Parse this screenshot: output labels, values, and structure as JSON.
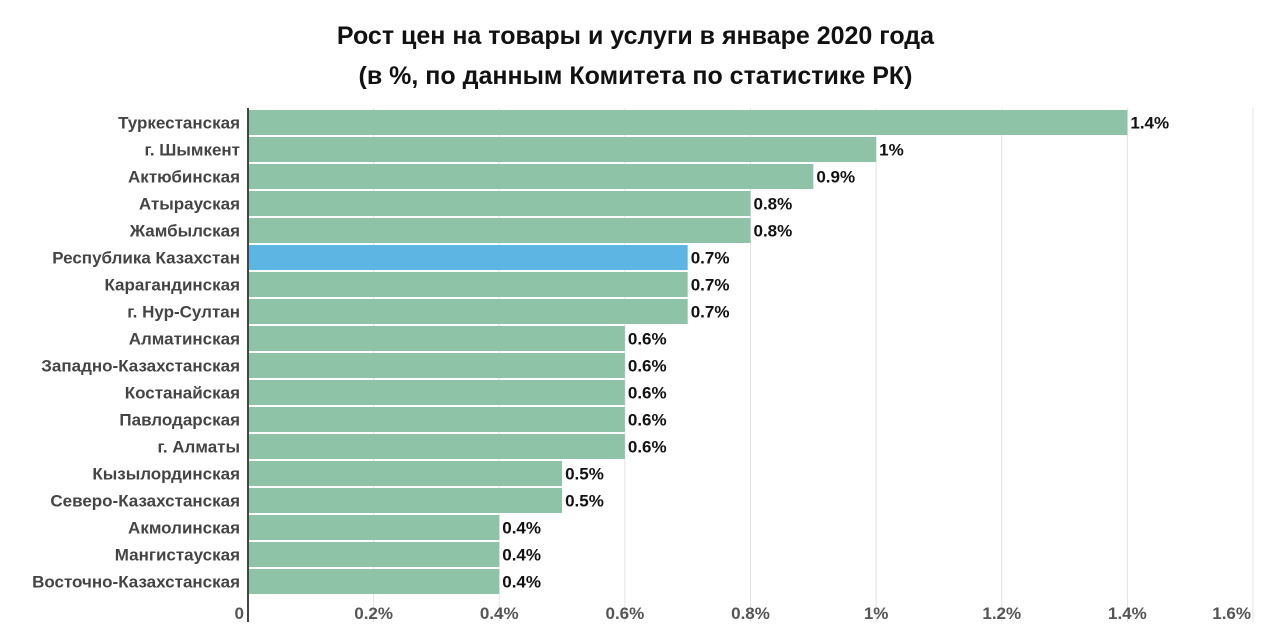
{
  "chart_data": {
    "type": "bar",
    "orientation": "horizontal",
    "title": "Рост цен на товары и услуги в январе 2020 года",
    "subtitle": "(в %, по данным Комитета по статистике РК)",
    "categories": [
      "Туркестанская",
      "г. Шымкент",
      "Актюбинская",
      "Атырауская",
      "Жамбылская",
      "Республика Казахстан",
      "Карагандинская",
      "г. Нур-Султан",
      "Алматинская",
      "Западно-Казахстанская",
      "Костанайская",
      "Павлодарская",
      "г. Алматы",
      "Кызылординская",
      "Северо-Казахстанская",
      "Акмолинская",
      "Мангистауская",
      "Восточно-Казахстанская"
    ],
    "values": [
      1.4,
      1.0,
      0.9,
      0.8,
      0.8,
      0.7,
      0.7,
      0.7,
      0.6,
      0.6,
      0.6,
      0.6,
      0.6,
      0.5,
      0.5,
      0.4,
      0.4,
      0.4
    ],
    "value_labels": [
      "1.4%",
      "1%",
      "0.9%",
      "0.8%",
      "0.8%",
      "0.7%",
      "0.7%",
      "0.7%",
      "0.6%",
      "0.6%",
      "0.6%",
      "0.6%",
      "0.6%",
      "0.5%",
      "0.5%",
      "0.4%",
      "0.4%",
      "0.4%"
    ],
    "highlight_category": "Республика Казахстан",
    "xlim": [
      0,
      1.6
    ],
    "x_ticks": [
      0,
      0.2,
      0.4,
      0.6,
      0.8,
      1.0,
      1.2,
      1.4,
      1.6
    ],
    "x_tick_labels": [
      "0",
      "0.2%",
      "0.4%",
      "0.6%",
      "0.8%",
      "1%",
      "1.2%",
      "1.4%",
      "1.6%"
    ],
    "grid": true,
    "colors": {
      "bar": "#8fc3a8",
      "highlight": "#5db5e3",
      "grid": "#e3e3e3",
      "axis": "#444444"
    }
  }
}
